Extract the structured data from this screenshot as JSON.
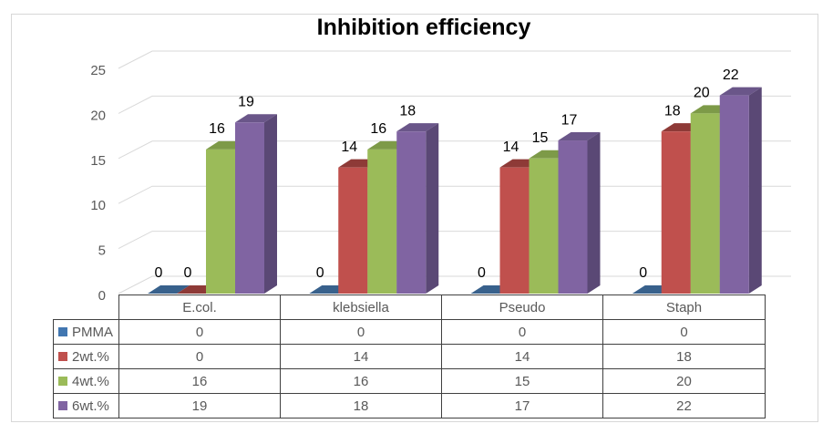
{
  "title": "Inhibition efficiency",
  "chart_data": {
    "type": "bar",
    "subtype": "3d-clustered-column",
    "title": "Inhibition efficiency",
    "categories": [
      "E.col.",
      "klebsiella",
      "Pseudo",
      "Staph"
    ],
    "series": [
      {
        "name": "PMMA",
        "color": "#4176B0",
        "top_color": "#38618C",
        "side_color": "#2F5278",
        "values": [
          0,
          0,
          0,
          0
        ]
      },
      {
        "name": "2wt.%",
        "color": "#C0504D",
        "top_color": "#8E3A37",
        "side_color": "#7E3230",
        "values": [
          0,
          14,
          14,
          18
        ]
      },
      {
        "name": "4wt.%",
        "color": "#9BBB59",
        "top_color": "#7D9A48",
        "side_color": "#6E8A40",
        "values": [
          16,
          16,
          15,
          20
        ]
      },
      {
        "name": "6wt.%",
        "color": "#8064A2",
        "top_color": "#6A5689",
        "side_color": "#5A4875",
        "values": [
          19,
          18,
          17,
          22
        ]
      }
    ],
    "data_labels": true,
    "y_axis": {
      "min": 0,
      "max": 25,
      "step": 5,
      "tick_labels": [
        "0",
        "5",
        "10",
        "15",
        "20",
        "25"
      ]
    },
    "grid": true,
    "legend_position": "table-left",
    "grid_color": "#d9d9d9",
    "axis_label_color": "#595959",
    "table_border_color": "#404040"
  },
  "table": {
    "header": [
      "E.col.",
      "klebsiella",
      "Pseudo",
      "Staph"
    ],
    "rows": [
      {
        "label": "PMMA",
        "key_color": "#4176B0",
        "values": [
          "0",
          "0",
          "0",
          "0"
        ]
      },
      {
        "label": "2wt.%",
        "key_color": "#C0504D",
        "values": [
          "0",
          "14",
          "14",
          "18"
        ]
      },
      {
        "label": "4wt.%",
        "key_color": "#9BBB59",
        "values": [
          "16",
          "16",
          "15",
          "20"
        ]
      },
      {
        "label": "6wt.%",
        "key_color": "#8064A2",
        "values": [
          "19",
          "18",
          "17",
          "22"
        ]
      }
    ]
  }
}
